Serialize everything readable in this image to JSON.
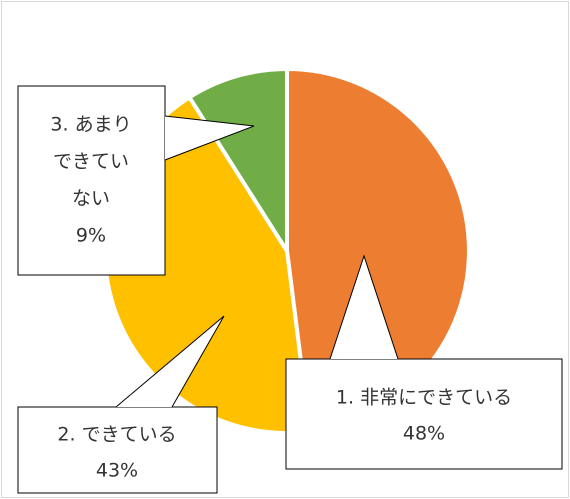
{
  "chart_data": {
    "type": "pie",
    "slices": [
      {
        "label": "1. 非常にできている",
        "value": 48,
        "display": "48%",
        "color": "#ED7D31",
        "label_lines": [
          "1. 非常にできている",
          "48%"
        ]
      },
      {
        "label": "2. できている",
        "value": 43,
        "display": "43%",
        "color": "#FFC000",
        "label_lines": [
          "2. できている",
          "43%"
        ]
      },
      {
        "label": "3. あまりできていない",
        "value": 9,
        "display": "9%",
        "color": "#70AD47",
        "label_lines": [
          "3. あまり",
          "できてい",
          "ない",
          "9%"
        ]
      }
    ],
    "start_angle_deg": 0,
    "direction": "clockwise",
    "legend": "none",
    "data_labels": "callouts"
  }
}
